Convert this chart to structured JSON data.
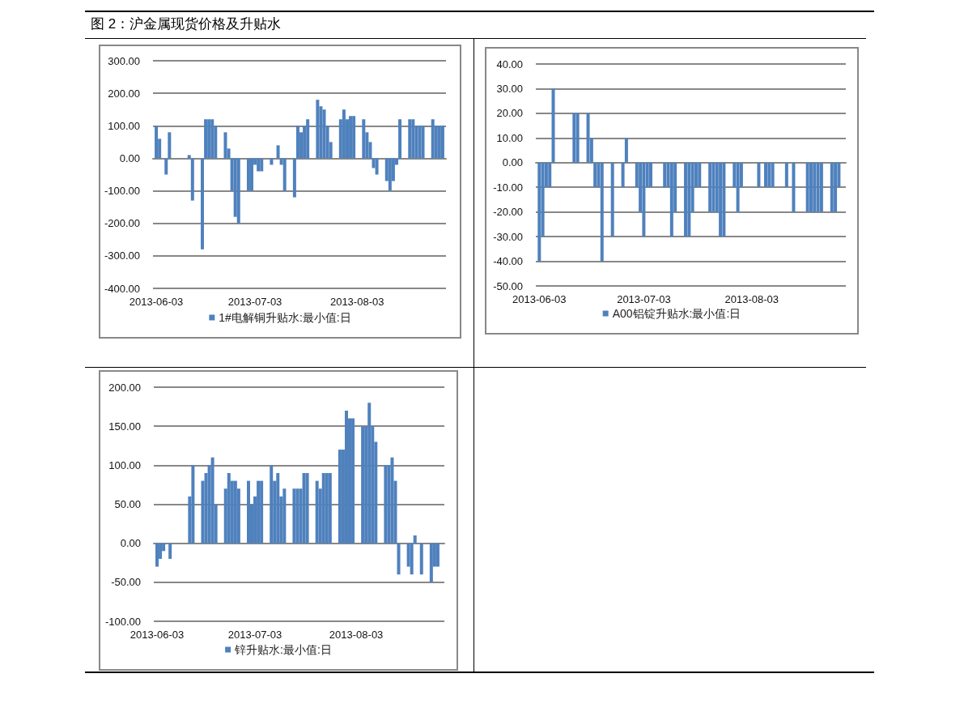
{
  "chart_data": [
    {
      "type": "bar",
      "title": "图 2：沪金属现货价格及升贴水",
      "x": [
        "2013-06-03",
        "2013-06-04",
        "2013-06-06",
        "2013-06-07",
        "2013-06-13",
        "2013-06-14",
        "2013-06-17",
        "2013-06-18",
        "2013-06-19",
        "2013-06-20",
        "2013-06-21",
        "2013-06-24",
        "2013-06-25",
        "2013-06-26",
        "2013-06-27",
        "2013-06-28",
        "2013-07-01",
        "2013-07-02",
        "2013-07-03",
        "2013-07-04",
        "2013-07-05",
        "2013-07-08",
        "2013-07-10",
        "2013-07-11",
        "2013-07-12",
        "2013-07-15",
        "2013-07-16",
        "2013-07-17",
        "2013-07-18",
        "2013-07-19",
        "2013-07-22",
        "2013-07-23",
        "2013-07-24",
        "2013-07-25",
        "2013-07-26",
        "2013-07-29",
        "2013-07-30",
        "2013-07-31",
        "2013-08-01",
        "2013-08-02",
        "2013-08-05",
        "2013-08-06",
        "2013-08-07",
        "2013-08-08",
        "2013-08-09",
        "2013-08-12",
        "2013-08-13",
        "2013-08-14",
        "2013-08-15",
        "2013-08-16",
        "2013-08-19",
        "2013-08-20",
        "2013-08-21",
        "2013-08-22",
        "2013-08-23",
        "2013-08-26",
        "2013-08-27",
        "2013-08-28",
        "2013-08-29"
      ],
      "series": [
        {
          "name": "1#电解铜升贴水:最小值:日",
          "color": "#4f81bd",
          "values": [
            100,
            60,
            -50,
            80,
            10,
            -130,
            -280,
            120,
            120,
            120,
            100,
            80,
            30,
            -100,
            -180,
            -200,
            -100,
            -100,
            -20,
            -40,
            -40,
            -20,
            40,
            -20,
            -100,
            -120,
            100,
            80,
            100,
            120,
            180,
            160,
            150,
            100,
            50,
            120,
            150,
            120,
            130,
            130,
            120,
            80,
            50,
            -30,
            -50,
            -70,
            -100,
            -70,
            -20,
            120,
            120,
            120,
            100,
            100,
            100,
            120,
            100,
            100,
            100
          ]
        }
      ],
      "xlim": [
        "2013-06-02",
        "2013-08-30"
      ],
      "xticks": [
        "2013-06-03",
        "2013-07-03",
        "2013-08-03"
      ],
      "ylim": [
        -400,
        300
      ],
      "yticks": [
        {
          "value": -400,
          "label": "-400.00"
        },
        {
          "value": -300,
          "label": "-300.00"
        },
        {
          "value": -200,
          "label": "-200.00"
        },
        {
          "value": -100,
          "label": "-100.00"
        },
        {
          "value": 0,
          "label": "0.00"
        },
        {
          "value": 100,
          "label": "100.00"
        },
        {
          "value": 200,
          "label": "200.00"
        },
        {
          "value": 300,
          "label": "300.00"
        }
      ],
      "grid": "y",
      "legend": "bottom"
    },
    {
      "type": "bar",
      "x": [
        "2013-06-03",
        "2013-06-04",
        "2013-06-05",
        "2013-06-06",
        "2013-06-07",
        "2013-06-13",
        "2013-06-14",
        "2013-06-17",
        "2013-06-18",
        "2013-06-19",
        "2013-06-20",
        "2013-06-21",
        "2013-06-24",
        "2013-06-27",
        "2013-06-28",
        "2013-07-01",
        "2013-07-02",
        "2013-07-03",
        "2013-07-04",
        "2013-07-05",
        "2013-07-09",
        "2013-07-10",
        "2013-07-11",
        "2013-07-12",
        "2013-07-15",
        "2013-07-16",
        "2013-07-17",
        "2013-07-18",
        "2013-07-19",
        "2013-07-22",
        "2013-07-23",
        "2013-07-24",
        "2013-07-25",
        "2013-07-26",
        "2013-07-29",
        "2013-07-30",
        "2013-07-31",
        "2013-08-05",
        "2013-08-07",
        "2013-08-08",
        "2013-08-09",
        "2013-08-13",
        "2013-08-15",
        "2013-08-19",
        "2013-08-20",
        "2013-08-21",
        "2013-08-22",
        "2013-08-23",
        "2013-08-26",
        "2013-08-27",
        "2013-08-28"
      ],
      "series": [
        {
          "name": "A00铝锭升贴水:最小值:日",
          "color": "#4f81bd",
          "values": [
            -40,
            -30,
            -10,
            -10,
            30,
            20,
            20,
            20,
            10,
            -10,
            -10,
            -40,
            -30,
            -10,
            10,
            -10,
            -20,
            -30,
            -10,
            -10,
            -10,
            -10,
            -30,
            -20,
            -30,
            -30,
            -20,
            -10,
            -10,
            -20,
            -20,
            -20,
            -30,
            -30,
            -10,
            -20,
            -10,
            -10,
            -10,
            -10,
            -10,
            -10,
            -20,
            -20,
            -20,
            -20,
            -20,
            -20,
            -20,
            -20,
            -10
          ]
        }
      ],
      "xlim": [
        "2013-06-02",
        "2013-08-30"
      ],
      "xticks": [
        "2013-06-03",
        "2013-07-03",
        "2013-08-03"
      ],
      "ylim": [
        -50,
        40
      ],
      "yticks": [
        {
          "value": -50,
          "label": "-50.00"
        },
        {
          "value": -40,
          "label": "-40.00"
        },
        {
          "value": -30,
          "label": "-30.00"
        },
        {
          "value": -20,
          "label": "-20.00"
        },
        {
          "value": -10,
          "label": "-10.00"
        },
        {
          "value": 0,
          "label": "0.00"
        },
        {
          "value": 10,
          "label": "10.00"
        },
        {
          "value": 20,
          "label": "20.00"
        },
        {
          "value": 30,
          "label": "30.00"
        },
        {
          "value": 40,
          "label": "40.00"
        }
      ],
      "grid": "y",
      "legend": "bottom"
    },
    {
      "type": "bar",
      "x": [
        "2013-06-03",
        "2013-06-04",
        "2013-06-05",
        "2013-06-07",
        "2013-06-13",
        "2013-06-14",
        "2013-06-17",
        "2013-06-18",
        "2013-06-19",
        "2013-06-20",
        "2013-06-21",
        "2013-06-24",
        "2013-06-25",
        "2013-06-26",
        "2013-06-27",
        "2013-06-28",
        "2013-07-01",
        "2013-07-02",
        "2013-07-03",
        "2013-07-04",
        "2013-07-05",
        "2013-07-08",
        "2013-07-09",
        "2013-07-10",
        "2013-07-11",
        "2013-07-12",
        "2013-07-15",
        "2013-07-16",
        "2013-07-17",
        "2013-07-18",
        "2013-07-19",
        "2013-07-22",
        "2013-07-23",
        "2013-07-24",
        "2013-07-25",
        "2013-07-26",
        "2013-07-29",
        "2013-07-30",
        "2013-07-31",
        "2013-08-01",
        "2013-08-02",
        "2013-08-05",
        "2013-08-06",
        "2013-08-07",
        "2013-08-08",
        "2013-08-09",
        "2013-08-12",
        "2013-08-13",
        "2013-08-14",
        "2013-08-15",
        "2013-08-16",
        "2013-08-19",
        "2013-08-20",
        "2013-08-21",
        "2013-08-23",
        "2013-08-26",
        "2013-08-27",
        "2013-08-28"
      ],
      "series": [
        {
          "name": "锌升贴水:最小值:日",
          "color": "#4f81bd",
          "values": [
            -30,
            -20,
            -10,
            -20,
            60,
            100,
            80,
            90,
            100,
            110,
            50,
            70,
            90,
            80,
            80,
            70,
            80,
            50,
            60,
            80,
            80,
            100,
            80,
            90,
            60,
            70,
            70,
            70,
            70,
            90,
            90,
            80,
            70,
            90,
            90,
            90,
            120,
            120,
            170,
            160,
            160,
            150,
            150,
            180,
            150,
            130,
            100,
            100,
            110,
            80,
            -40,
            -30,
            -40,
            10,
            -40,
            -50,
            -30,
            -30
          ]
        }
      ],
      "xlim": [
        "2013-06-02",
        "2013-08-30"
      ],
      "xticks": [
        "2013-06-03",
        "2013-07-03",
        "2013-08-03"
      ],
      "ylim": [
        -100,
        200
      ],
      "yticks": [
        {
          "value": -100,
          "label": "-100.00"
        },
        {
          "value": -50,
          "label": "-50.00"
        },
        {
          "value": 0,
          "label": "0.00"
        },
        {
          "value": 50,
          "label": "50.00"
        },
        {
          "value": 100,
          "label": "100.00"
        },
        {
          "value": 150,
          "label": "150.00"
        },
        {
          "value": 200,
          "label": "200.00"
        }
      ],
      "grid": "y",
      "legend": "bottom"
    }
  ]
}
